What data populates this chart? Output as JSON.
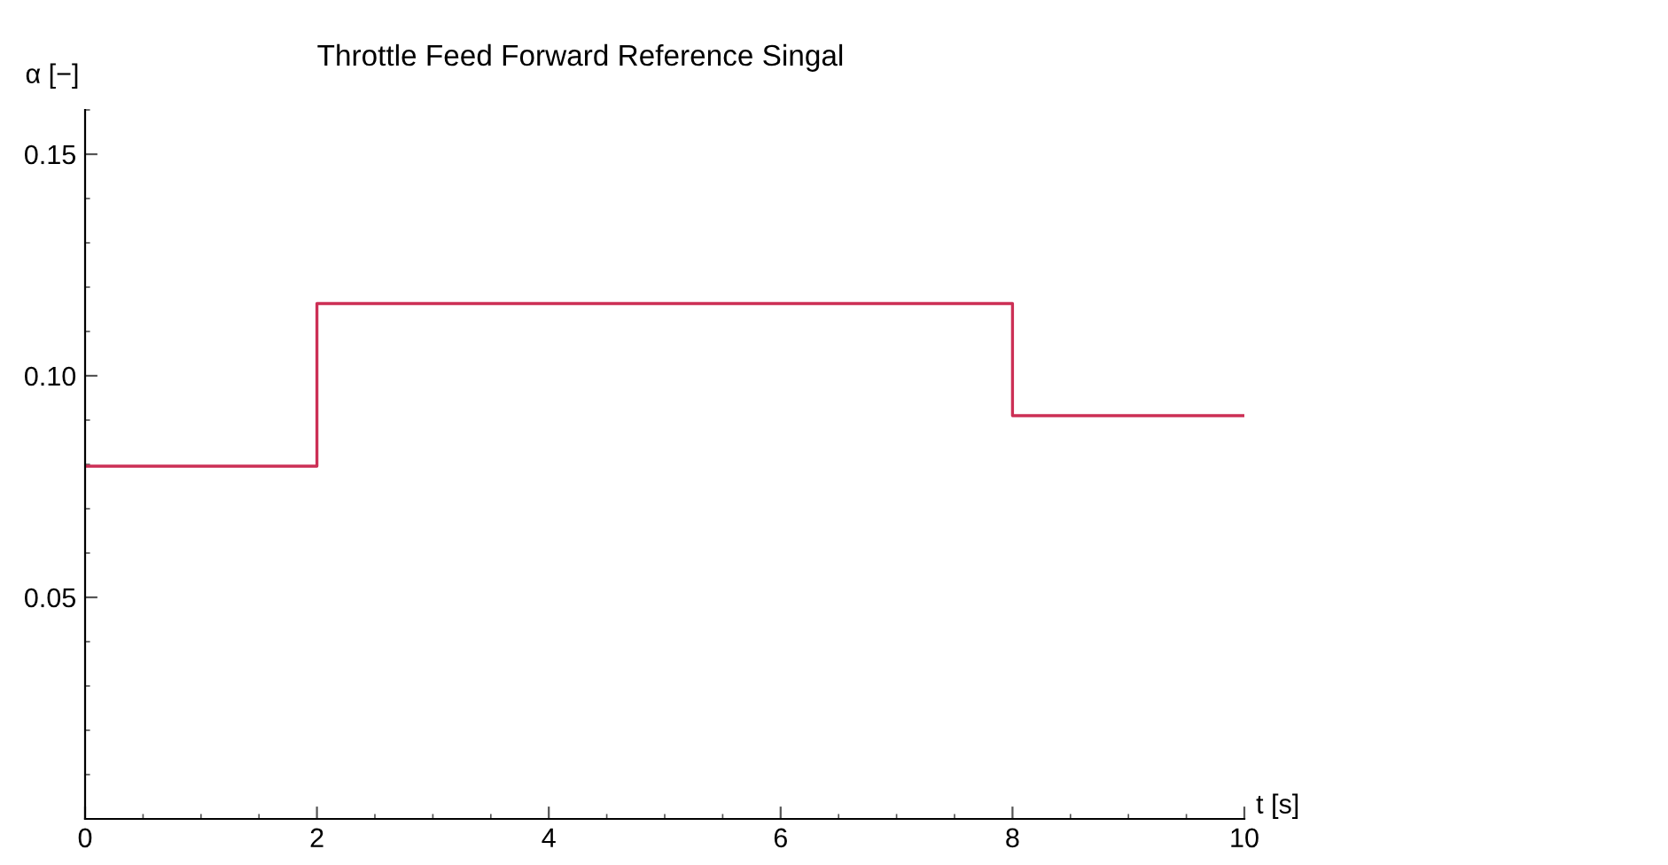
{
  "chart_data": {
    "type": "step",
    "title": "Throttle Feed Forward Reference Singal",
    "xlabel": "t [s]",
    "ylabel": "α [−]",
    "x": [
      0,
      2,
      8,
      10
    ],
    "series": [
      {
        "color": "#cc2f55",
        "values": [
          0.0796,
          0.1163,
          0.091,
          0.091
        ]
      }
    ],
    "xlim": [
      0,
      10
    ],
    "xticks": [
      0,
      2,
      4,
      6,
      8,
      10
    ],
    "ylim": [
      0,
      0.16
    ],
    "yticks": [
      {
        "value": 0.05,
        "label": "0.05"
      },
      {
        "value": 0.1,
        "label": "0.10"
      },
      {
        "value": 0.15,
        "label": "0.15"
      }
    ],
    "grid": false,
    "line_style": "solid",
    "marker": "none"
  }
}
